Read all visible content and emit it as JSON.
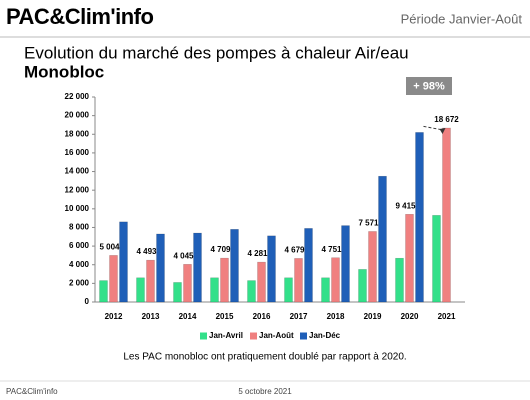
{
  "header": {
    "logo": "PAC&Clim'info",
    "period": "Période Janvier-Août"
  },
  "chart_data": {
    "type": "bar",
    "title": "Evolution du marché des pompes à chaleur Air/eau",
    "subtitle": "Monobloc",
    "annotation": "+ 98%",
    "categories": [
      "2012",
      "2013",
      "2014",
      "2015",
      "2016",
      "2017",
      "2018",
      "2019",
      "2020",
      "2021"
    ],
    "series": [
      {
        "name": "Jan-Avril",
        "color": "#33e08a",
        "values": [
          2300,
          2600,
          2100,
          2600,
          2300,
          2600,
          2600,
          3500,
          4700,
          9300
        ]
      },
      {
        "name": "Jan-Août",
        "color": "#f08080",
        "values": [
          5004,
          4493,
          4045,
          4709,
          4281,
          4679,
          4751,
          7571,
          9415,
          18672
        ],
        "value_labels": [
          "5 004",
          "4 493",
          "4 045",
          "4 709",
          "4 281",
          "4 679",
          "4 751",
          "7 571",
          "9 415",
          "18 672"
        ]
      },
      {
        "name": "Jan-Déc",
        "color": "#1f5fb8",
        "values": [
          8600,
          7300,
          7400,
          7800,
          7100,
          7900,
          8200,
          13500,
          18200,
          null
        ]
      }
    ],
    "ylim": [
      0,
      22000
    ],
    "yticks": [
      0,
      {
        "value": 2000,
        "label": "2 000"
      },
      {
        "value": 4000,
        "label": "4 000"
      },
      {
        "value": 6000,
        "label": "6 000"
      },
      {
        "value": 8000,
        "label": "8 000"
      },
      {
        "value": 10000,
        "label": "10 000"
      },
      {
        "value": 12000,
        "label": "12 000"
      },
      {
        "value": 14000,
        "label": "14 000"
      },
      {
        "value": 16000,
        "label": "16 000"
      },
      {
        "value": 18000,
        "label": "18 000"
      },
      {
        "value": 20000,
        "label": "20 000"
      },
      {
        "value": 22000,
        "label": "22 000"
      }
    ],
    "grid": false,
    "caption": "Les PAC monobloc ont pratiquement doublé par rapport à 2020."
  },
  "footer": {
    "left": "PAC&Clim'info",
    "date": "5 octobre 2021"
  }
}
